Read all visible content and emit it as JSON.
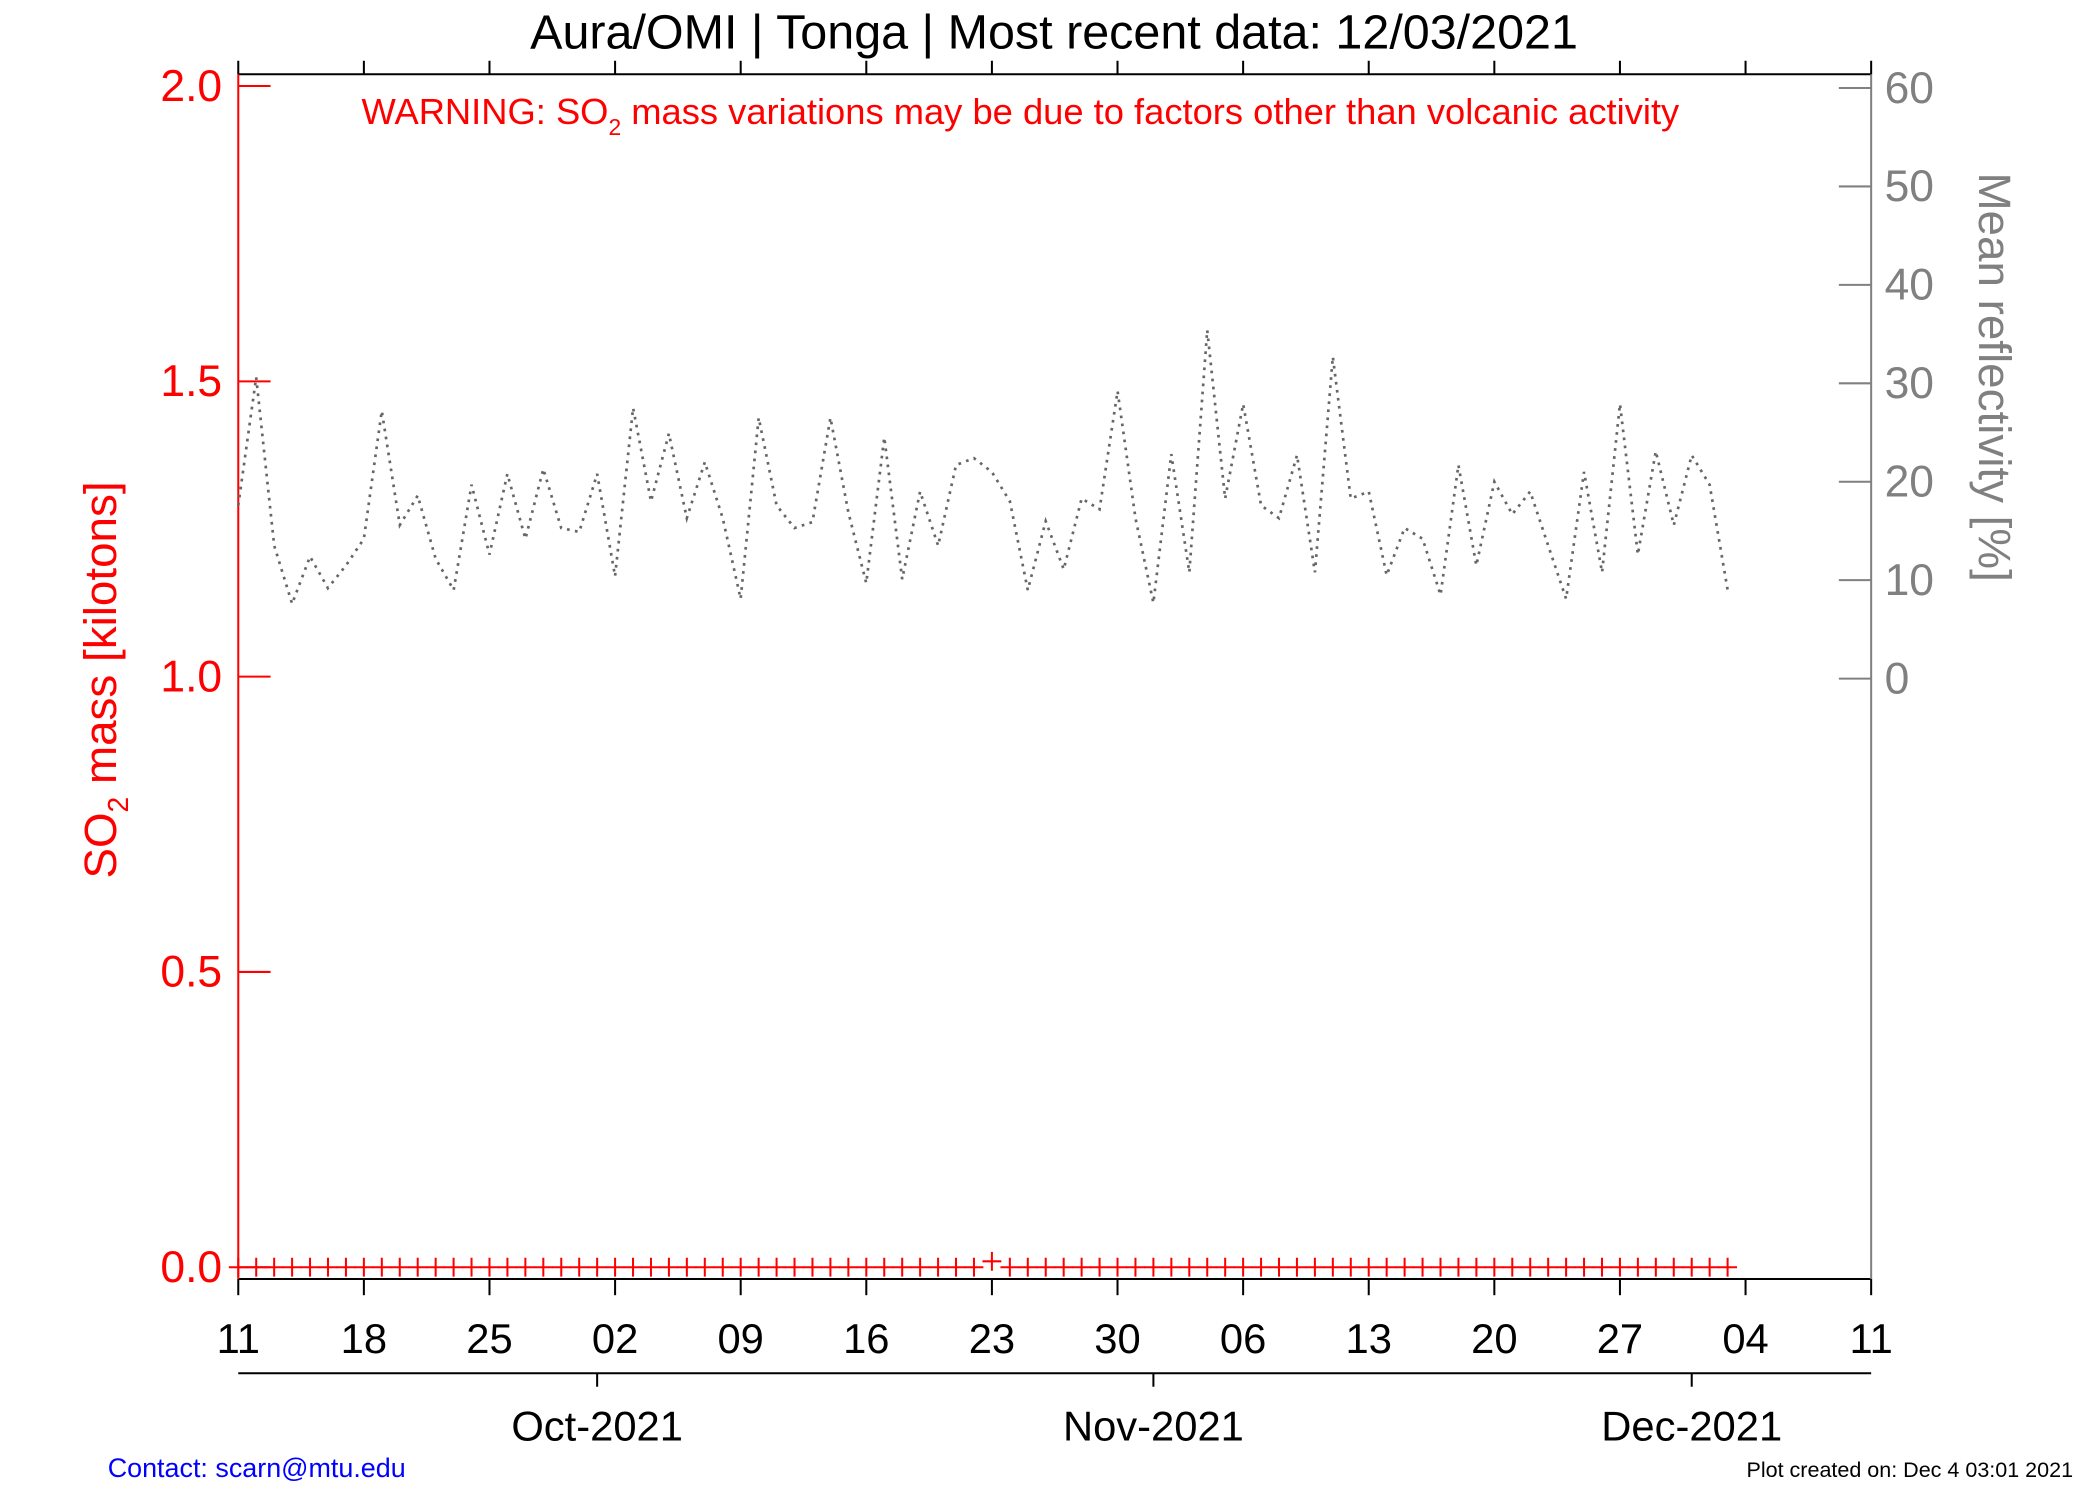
{
  "chart_data": {
    "type": "line",
    "title": "Aura/OMI | Tonga | Most recent data: 12/03/2021",
    "warning": {
      "prefix": "WARNING: SO",
      "sub": "2",
      "suffix": " mass variations may be due to factors other than volcanic activity"
    },
    "ylabel": {
      "prefix": "SO",
      "sub": "2",
      "suffix": " mass [kilotons]"
    },
    "y2label": "Mean reflectivity [%]",
    "x": [
      "2021-09-11",
      "2021-09-12",
      "2021-09-13",
      "2021-09-14",
      "2021-09-15",
      "2021-09-16",
      "2021-09-17",
      "2021-09-18",
      "2021-09-19",
      "2021-09-20",
      "2021-09-21",
      "2021-09-22",
      "2021-09-23",
      "2021-09-24",
      "2021-09-25",
      "2021-09-26",
      "2021-09-27",
      "2021-09-28",
      "2021-09-29",
      "2021-09-30",
      "2021-10-01",
      "2021-10-02",
      "2021-10-03",
      "2021-10-04",
      "2021-10-05",
      "2021-10-06",
      "2021-10-07",
      "2021-10-08",
      "2021-10-09",
      "2021-10-10",
      "2021-10-11",
      "2021-10-12",
      "2021-10-13",
      "2021-10-14",
      "2021-10-15",
      "2021-10-16",
      "2021-10-17",
      "2021-10-18",
      "2021-10-19",
      "2021-10-20",
      "2021-10-21",
      "2021-10-22",
      "2021-10-23",
      "2021-10-24",
      "2021-10-25",
      "2021-10-26",
      "2021-10-27",
      "2021-10-28",
      "2021-10-29",
      "2021-10-30",
      "2021-10-31",
      "2021-11-01",
      "2021-11-02",
      "2021-11-03",
      "2021-11-04",
      "2021-11-05",
      "2021-11-06",
      "2021-11-07",
      "2021-11-08",
      "2021-11-09",
      "2021-11-10",
      "2021-11-11",
      "2021-11-12",
      "2021-11-13",
      "2021-11-14",
      "2021-11-15",
      "2021-11-16",
      "2021-11-17",
      "2021-11-18",
      "2021-11-19",
      "2021-11-20",
      "2021-11-21",
      "2021-11-22",
      "2021-11-23",
      "2021-11-24",
      "2021-11-25",
      "2021-11-26",
      "2021-11-27",
      "2021-11-28",
      "2021-11-29",
      "2021-11-30",
      "2021-12-01",
      "2021-12-02",
      "2021-12-03"
    ],
    "series": [
      {
        "name": "SO2 mass",
        "color": "#ff0000",
        "values": [
          0,
          0,
          0,
          0,
          0,
          0,
          0,
          0,
          0,
          0,
          0,
          0,
          0,
          0,
          0,
          0,
          0,
          0,
          0,
          0,
          0,
          0,
          0,
          0,
          0,
          0,
          0,
          0,
          0,
          0,
          0,
          0,
          0,
          0,
          0,
          0,
          0,
          0,
          0,
          0,
          0,
          0,
          0.01,
          0,
          0,
          0,
          0,
          0,
          0,
          0,
          0,
          0,
          0,
          0,
          0,
          0,
          0,
          0,
          0,
          0,
          0,
          0,
          0,
          0,
          0,
          0,
          0,
          0,
          0,
          0,
          0,
          0,
          0,
          0,
          0,
          0,
          0,
          0,
          0,
          0,
          0,
          0,
          0,
          0
        ]
      },
      {
        "name": "Mean reflectivity",
        "color": "#666666",
        "axis": "y2",
        "values": [
          17.6,
          30.6,
          13.5,
          7.6,
          12.4,
          9.2,
          11.5,
          14.2,
          27.2,
          15.6,
          18.6,
          12.2,
          9,
          19.7,
          12.6,
          20.8,
          14.2,
          21.3,
          15.3,
          14.9,
          20.8,
          10.4,
          27.5,
          18,
          24.9,
          16.3,
          22,
          16.3,
          8.1,
          26.5,
          17.6,
          15.3,
          15.9,
          26.5,
          16.9,
          9.7,
          24.5,
          10.1,
          19,
          13.5,
          21.7,
          22.4,
          21,
          18,
          9,
          16,
          11.1,
          18.3,
          17.2,
          29.2,
          16.3,
          7.7,
          22.8,
          10.8,
          35.4,
          18.3,
          27.9,
          17.6,
          16.3,
          22.7,
          10.8,
          32.7,
          18.3,
          19,
          10.5,
          15.3,
          14.2,
          8.5,
          21.7,
          11.5,
          20,
          16.7,
          19,
          13.5,
          8.1,
          21,
          10.8,
          27.9,
          12.6,
          23.1,
          15.6,
          22.7,
          19.7,
          9
        ]
      }
    ],
    "xlim": [
      "2021-09-11",
      "2021-12-11"
    ],
    "xticks": [
      {
        "value": "2021-09-11",
        "label": "11"
      },
      {
        "value": "2021-09-18",
        "label": "18"
      },
      {
        "value": "2021-09-25",
        "label": "25"
      },
      {
        "value": "2021-10-02",
        "label": "02"
      },
      {
        "value": "2021-10-09",
        "label": "09"
      },
      {
        "value": "2021-10-16",
        "label": "16"
      },
      {
        "value": "2021-10-23",
        "label": "23"
      },
      {
        "value": "2021-10-30",
        "label": "30"
      },
      {
        "value": "2021-11-06",
        "label": "06"
      },
      {
        "value": "2021-11-13",
        "label": "13"
      },
      {
        "value": "2021-11-20",
        "label": "20"
      },
      {
        "value": "2021-11-27",
        "label": "27"
      },
      {
        "value": "2021-12-04",
        "label": "04"
      },
      {
        "value": "2021-12-11",
        "label": "11"
      }
    ],
    "month_ticks": [
      {
        "value": "2021-10-01",
        "label": "Oct-2021"
      },
      {
        "value": "2021-11-01",
        "label": "Nov-2021"
      },
      {
        "value": "2021-12-01",
        "label": "Dec-2021"
      }
    ],
    "ylim": [
      -0.02,
      2.02
    ],
    "yticks": [
      {
        "value": 0,
        "label": "0.0"
      },
      {
        "value": 0.5,
        "label": "0.5"
      },
      {
        "value": 1,
        "label": "1.0"
      },
      {
        "value": 1.5,
        "label": "1.5"
      },
      {
        "value": 2,
        "label": "2.0"
      }
    ],
    "y2lim": [
      -61,
      61.4
    ],
    "y2ticks": [
      0,
      10,
      20,
      30,
      40,
      50,
      60
    ],
    "contact": "Contact: scarn@mtu.edu",
    "created": "Plot created on: Dec  4 03:01 2021"
  }
}
